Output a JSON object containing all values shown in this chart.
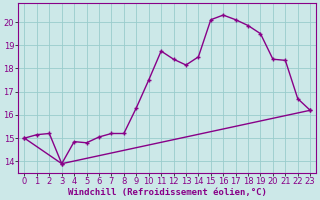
{
  "xlabel": "Windchill (Refroidissement éolien,°C)",
  "bg_color": "#cce8e8",
  "grid_color": "#99cccc",
  "line_color": "#880088",
  "xlim": [
    -0.5,
    23.5
  ],
  "ylim": [
    13.5,
    20.8
  ],
  "xticks": [
    0,
    1,
    2,
    3,
    4,
    5,
    6,
    7,
    8,
    9,
    10,
    11,
    12,
    13,
    14,
    15,
    16,
    17,
    18,
    19,
    20,
    21,
    22,
    23
  ],
  "yticks": [
    14,
    15,
    16,
    17,
    18,
    19,
    20
  ],
  "line1_x": [
    0,
    1,
    2,
    3,
    4,
    5,
    6,
    7,
    8,
    9,
    10,
    11,
    12,
    13,
    14,
    15,
    16,
    17,
    18,
    19,
    20,
    21,
    22,
    23
  ],
  "line1_y": [
    15.0,
    15.15,
    15.2,
    13.9,
    14.85,
    14.8,
    15.05,
    15.2,
    15.2,
    16.3,
    17.5,
    18.75,
    18.4,
    18.15,
    18.5,
    20.1,
    20.3,
    20.1,
    19.85,
    19.5,
    18.4,
    18.35,
    16.7,
    16.2
  ],
  "line2_x": [
    0,
    3,
    23
  ],
  "line2_y": [
    15.0,
    13.9,
    16.2
  ],
  "xlabel_fontsize": 6.5,
  "tick_fontsize": 6.0,
  "line_width": 1.0,
  "marker_size": 3.5
}
